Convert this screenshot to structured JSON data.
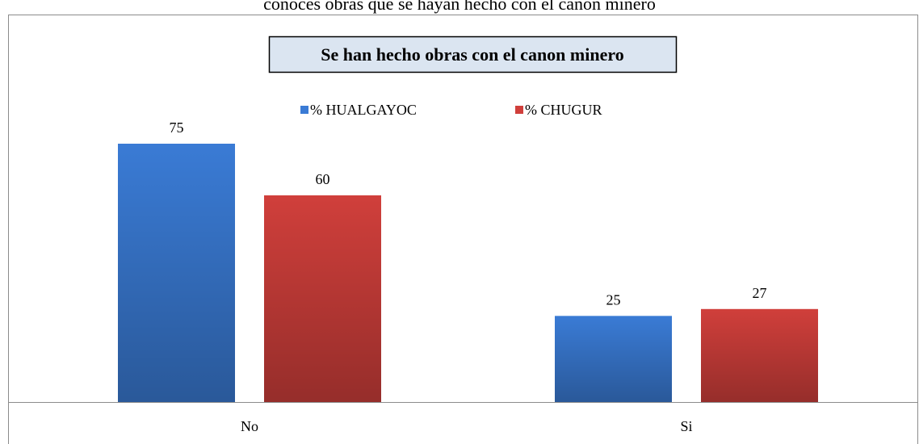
{
  "chart_data": {
    "type": "bar",
    "caption": "conoces obras que se hayan hecho con el canon minero",
    "title": "Se han hecho obras con el canon minero",
    "categories": [
      "No",
      "Si"
    ],
    "series": [
      {
        "name": "% HUALGAYOC",
        "color": "#3a7bd5",
        "values": [
          75,
          25
        ]
      },
      {
        "name": "% CHUGUR",
        "color": "#d03f3b",
        "values": [
          60,
          27
        ]
      }
    ],
    "legend": "top"
  }
}
